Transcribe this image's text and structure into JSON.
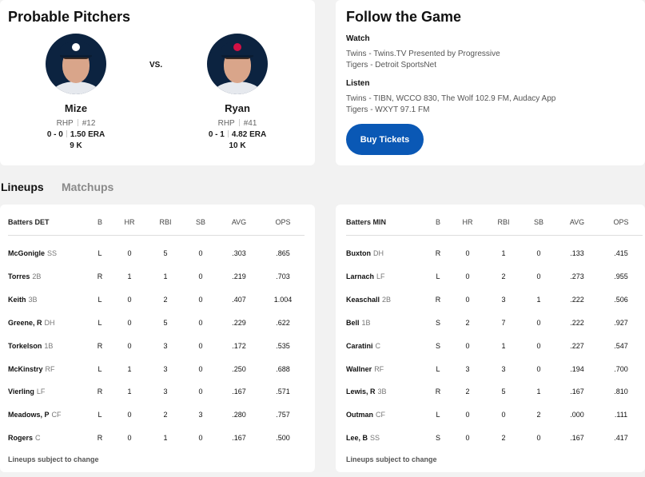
{
  "pitchers": {
    "title": "Probable Pitchers",
    "vs": "VS.",
    "away": {
      "name": "Mize",
      "throws": "RHP",
      "number": "#12",
      "record": "0 - 0",
      "era": "1.50 ERA",
      "k": "9 K"
    },
    "home": {
      "name": "Ryan",
      "throws": "RHP",
      "number": "#41",
      "record": "0 - 1",
      "era": "4.82 ERA",
      "k": "10 K"
    }
  },
  "follow": {
    "title": "Follow the Game",
    "watch_label": "Watch",
    "watch": [
      "Twins - Twins.TV Presented by Progressive",
      "Tigers - Detroit SportsNet"
    ],
    "listen_label": "Listen",
    "listen": [
      "Twins - TIBN, WCCO 830, The Wolf 102.9 FM, Audacy App",
      "Tigers - WXYT 97.1 FM"
    ],
    "buy_label": "Buy Tickets",
    "buy_color": "#0a58b5"
  },
  "tabs": {
    "lineups": "Lineups",
    "matchups": "Matchups"
  },
  "lineups": {
    "columns": [
      "B",
      "HR",
      "RBI",
      "SB",
      "AVG",
      "OPS"
    ],
    "note": "Lineups subject to change",
    "det": {
      "header": "Batters DET",
      "rows": [
        {
          "name": "McGonigle",
          "pos": "SS",
          "b": "L",
          "hr": "0",
          "rbi": "5",
          "sb": "0",
          "avg": ".303",
          "ops": ".865"
        },
        {
          "name": "Torres",
          "pos": "2B",
          "b": "R",
          "hr": "1",
          "rbi": "1",
          "sb": "0",
          "avg": ".219",
          "ops": ".703"
        },
        {
          "name": "Keith",
          "pos": "3B",
          "b": "L",
          "hr": "0",
          "rbi": "2",
          "sb": "0",
          "avg": ".407",
          "ops": "1.004"
        },
        {
          "name": "Greene, R",
          "pos": "DH",
          "b": "L",
          "hr": "0",
          "rbi": "5",
          "sb": "0",
          "avg": ".229",
          "ops": ".622"
        },
        {
          "name": "Torkelson",
          "pos": "1B",
          "b": "R",
          "hr": "0",
          "rbi": "3",
          "sb": "0",
          "avg": ".172",
          "ops": ".535"
        },
        {
          "name": "McKinstry",
          "pos": "RF",
          "b": "L",
          "hr": "1",
          "rbi": "3",
          "sb": "0",
          "avg": ".250",
          "ops": ".688"
        },
        {
          "name": "Vierling",
          "pos": "LF",
          "b": "R",
          "hr": "1",
          "rbi": "3",
          "sb": "0",
          "avg": ".167",
          "ops": ".571"
        },
        {
          "name": "Meadows, P",
          "pos": "CF",
          "b": "L",
          "hr": "0",
          "rbi": "2",
          "sb": "3",
          "avg": ".280",
          "ops": ".757"
        },
        {
          "name": "Rogers",
          "pos": "C",
          "b": "R",
          "hr": "0",
          "rbi": "1",
          "sb": "0",
          "avg": ".167",
          "ops": ".500"
        }
      ]
    },
    "min": {
      "header": "Batters MIN",
      "rows": [
        {
          "name": "Buxton",
          "pos": "DH",
          "b": "R",
          "hr": "0",
          "rbi": "1",
          "sb": "0",
          "avg": ".133",
          "ops": ".415"
        },
        {
          "name": "Larnach",
          "pos": "LF",
          "b": "L",
          "hr": "0",
          "rbi": "2",
          "sb": "0",
          "avg": ".273",
          "ops": ".955"
        },
        {
          "name": "Keaschall",
          "pos": "2B",
          "b": "R",
          "hr": "0",
          "rbi": "3",
          "sb": "1",
          "avg": ".222",
          "ops": ".506"
        },
        {
          "name": "Bell",
          "pos": "1B",
          "b": "S",
          "hr": "2",
          "rbi": "7",
          "sb": "0",
          "avg": ".222",
          "ops": ".927"
        },
        {
          "name": "Caratini",
          "pos": "C",
          "b": "S",
          "hr": "0",
          "rbi": "1",
          "sb": "0",
          "avg": ".227",
          "ops": ".547"
        },
        {
          "name": "Wallner",
          "pos": "RF",
          "b": "L",
          "hr": "3",
          "rbi": "3",
          "sb": "0",
          "avg": ".194",
          "ops": ".700"
        },
        {
          "name": "Lewis, R",
          "pos": "3B",
          "b": "R",
          "hr": "2",
          "rbi": "5",
          "sb": "1",
          "avg": ".167",
          "ops": ".810"
        },
        {
          "name": "Outman",
          "pos": "CF",
          "b": "L",
          "hr": "0",
          "rbi": "0",
          "sb": "2",
          "avg": ".000",
          "ops": ".111"
        },
        {
          "name": "Lee, B",
          "pos": "SS",
          "b": "S",
          "hr": "0",
          "rbi": "2",
          "sb": "0",
          "avg": ".167",
          "ops": ".417"
        }
      ]
    }
  }
}
